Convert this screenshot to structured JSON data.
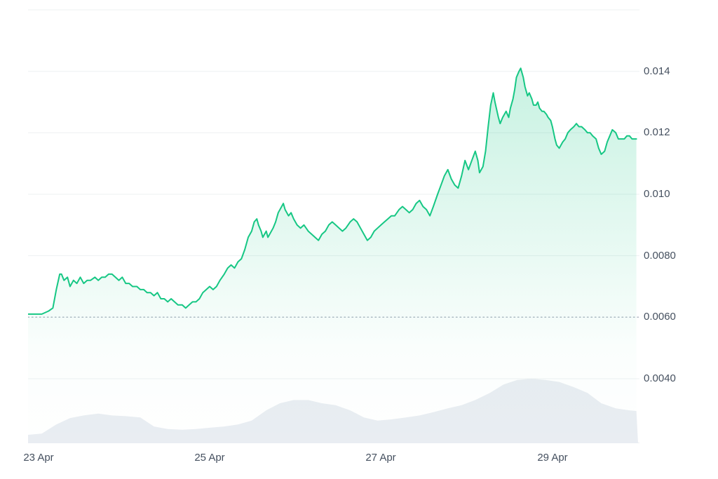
{
  "colors": {
    "line": "#16c784",
    "grid": "#edf0f2",
    "dotted": "#b2b9c5",
    "volume": "#e9edf2",
    "label": "#45505f",
    "background": "#ffffff"
  },
  "chart_data": {
    "type": "line",
    "title": "",
    "xlabel": "",
    "ylabel": "",
    "x_axis": {
      "domain": [
        22.88,
        30.0
      ],
      "ticks": [
        {
          "day": 23,
          "label": "23 Apr"
        },
        {
          "day": 25,
          "label": "25 Apr"
        },
        {
          "day": 27,
          "label": "27 Apr"
        },
        {
          "day": 29,
          "label": "29 Apr"
        }
      ]
    },
    "y_axis": {
      "domain": [
        0.0019,
        0.01632
      ],
      "ticks": [
        {
          "value": 0.014,
          "label": "0.014"
        },
        {
          "value": 0.012,
          "label": "0.012"
        },
        {
          "value": 0.01,
          "label": "0.010"
        },
        {
          "value": 0.008,
          "label": "0.0080"
        },
        {
          "value": 0.006,
          "label": "0.0060"
        },
        {
          "value": 0.004,
          "label": "0.0040"
        }
      ],
      "gridline_values": [
        0.016,
        0.014,
        0.012,
        0.01,
        0.008,
        0.004
      ],
      "dotted_value": 0.006
    },
    "series": [
      {
        "name": "price",
        "type": "line",
        "points": [
          [
            22.88,
            0.0061
          ],
          [
            22.96,
            0.0061
          ],
          [
            23.04,
            0.0061
          ],
          [
            23.12,
            0.0062
          ],
          [
            23.17,
            0.0063
          ],
          [
            23.21,
            0.0069
          ],
          [
            23.25,
            0.0074
          ],
          [
            23.27,
            0.0074
          ],
          [
            23.3,
            0.0072
          ],
          [
            23.34,
            0.0073
          ],
          [
            23.37,
            0.007
          ],
          [
            23.41,
            0.0072
          ],
          [
            23.45,
            0.0071
          ],
          [
            23.49,
            0.0073
          ],
          [
            23.53,
            0.0071
          ],
          [
            23.57,
            0.0072
          ],
          [
            23.61,
            0.0072
          ],
          [
            23.66,
            0.0073
          ],
          [
            23.7,
            0.0072
          ],
          [
            23.74,
            0.0073
          ],
          [
            23.78,
            0.0073
          ],
          [
            23.82,
            0.0074
          ],
          [
            23.86,
            0.0074
          ],
          [
            23.9,
            0.0073
          ],
          [
            23.94,
            0.0072
          ],
          [
            23.98,
            0.0073
          ],
          [
            24.02,
            0.0071
          ],
          [
            24.06,
            0.0071
          ],
          [
            24.1,
            0.007
          ],
          [
            24.15,
            0.007
          ],
          [
            24.19,
            0.0069
          ],
          [
            24.23,
            0.0069
          ],
          [
            24.27,
            0.0068
          ],
          [
            24.31,
            0.0068
          ],
          [
            24.35,
            0.0067
          ],
          [
            24.39,
            0.0068
          ],
          [
            24.43,
            0.0066
          ],
          [
            24.47,
            0.0066
          ],
          [
            24.51,
            0.0065
          ],
          [
            24.55,
            0.0066
          ],
          [
            24.59,
            0.0065
          ],
          [
            24.63,
            0.0064
          ],
          [
            24.68,
            0.0064
          ],
          [
            24.72,
            0.0063
          ],
          [
            24.76,
            0.0064
          ],
          [
            24.8,
            0.0065
          ],
          [
            24.84,
            0.0065
          ],
          [
            24.88,
            0.0066
          ],
          [
            24.92,
            0.0068
          ],
          [
            24.96,
            0.0069
          ],
          [
            25.0,
            0.007
          ],
          [
            25.04,
            0.0069
          ],
          [
            25.08,
            0.007
          ],
          [
            25.12,
            0.0072
          ],
          [
            25.17,
            0.0074
          ],
          [
            25.21,
            0.0076
          ],
          [
            25.25,
            0.0077
          ],
          [
            25.29,
            0.0076
          ],
          [
            25.33,
            0.0078
          ],
          [
            25.37,
            0.0079
          ],
          [
            25.41,
            0.0082
          ],
          [
            25.45,
            0.0086
          ],
          [
            25.49,
            0.0088
          ],
          [
            25.52,
            0.0091
          ],
          [
            25.55,
            0.0092
          ],
          [
            25.57,
            0.009
          ],
          [
            25.6,
            0.0088
          ],
          [
            25.62,
            0.0086
          ],
          [
            25.66,
            0.0088
          ],
          [
            25.68,
            0.0086
          ],
          [
            25.7,
            0.0087
          ],
          [
            25.74,
            0.0089
          ],
          [
            25.77,
            0.0091
          ],
          [
            25.8,
            0.0094
          ],
          [
            25.84,
            0.0096
          ],
          [
            25.86,
            0.0097
          ],
          [
            25.88,
            0.0095
          ],
          [
            25.92,
            0.0093
          ],
          [
            25.95,
            0.0094
          ],
          [
            25.98,
            0.0092
          ],
          [
            26.02,
            0.009
          ],
          [
            26.06,
            0.0089
          ],
          [
            26.1,
            0.009
          ],
          [
            26.15,
            0.0088
          ],
          [
            26.19,
            0.0087
          ],
          [
            26.23,
            0.0086
          ],
          [
            26.27,
            0.0085
          ],
          [
            26.31,
            0.0087
          ],
          [
            26.35,
            0.0088
          ],
          [
            26.39,
            0.009
          ],
          [
            26.43,
            0.0091
          ],
          [
            26.47,
            0.009
          ],
          [
            26.51,
            0.0089
          ],
          [
            26.55,
            0.0088
          ],
          [
            26.59,
            0.0089
          ],
          [
            26.64,
            0.0091
          ],
          [
            26.68,
            0.0092
          ],
          [
            26.72,
            0.0091
          ],
          [
            26.76,
            0.0089
          ],
          [
            26.8,
            0.0087
          ],
          [
            26.84,
            0.0085
          ],
          [
            26.88,
            0.0086
          ],
          [
            26.92,
            0.0088
          ],
          [
            26.96,
            0.0089
          ],
          [
            27.0,
            0.009
          ],
          [
            27.04,
            0.0091
          ],
          [
            27.08,
            0.0092
          ],
          [
            27.12,
            0.0093
          ],
          [
            27.16,
            0.0093
          ],
          [
            27.21,
            0.0095
          ],
          [
            27.25,
            0.0096
          ],
          [
            27.29,
            0.0095
          ],
          [
            27.33,
            0.0094
          ],
          [
            27.37,
            0.0095
          ],
          [
            27.41,
            0.0097
          ],
          [
            27.45,
            0.0098
          ],
          [
            27.49,
            0.0096
          ],
          [
            27.53,
            0.0095
          ],
          [
            27.57,
            0.0093
          ],
          [
            27.61,
            0.0096
          ],
          [
            27.66,
            0.01
          ],
          [
            27.7,
            0.0103
          ],
          [
            27.74,
            0.0106
          ],
          [
            27.78,
            0.0108
          ],
          [
            27.82,
            0.0105
          ],
          [
            27.86,
            0.0103
          ],
          [
            27.9,
            0.0102
          ],
          [
            27.94,
            0.0106
          ],
          [
            27.98,
            0.0111
          ],
          [
            28.02,
            0.0108
          ],
          [
            28.06,
            0.0111
          ],
          [
            28.1,
            0.0114
          ],
          [
            28.13,
            0.0111
          ],
          [
            28.15,
            0.0107
          ],
          [
            28.19,
            0.0109
          ],
          [
            28.22,
            0.0114
          ],
          [
            28.25,
            0.0122
          ],
          [
            28.28,
            0.0129
          ],
          [
            28.31,
            0.0133
          ],
          [
            28.33,
            0.013
          ],
          [
            28.37,
            0.0125
          ],
          [
            28.39,
            0.0123
          ],
          [
            28.42,
            0.0125
          ],
          [
            28.44,
            0.0126
          ],
          [
            28.46,
            0.0127
          ],
          [
            28.49,
            0.0125
          ],
          [
            28.51,
            0.0128
          ],
          [
            28.54,
            0.0131
          ],
          [
            28.56,
            0.0134
          ],
          [
            28.58,
            0.0138
          ],
          [
            28.61,
            0.014
          ],
          [
            28.63,
            0.0141
          ],
          [
            28.66,
            0.0138
          ],
          [
            28.68,
            0.0135
          ],
          [
            28.71,
            0.0132
          ],
          [
            28.73,
            0.0133
          ],
          [
            28.76,
            0.0131
          ],
          [
            28.78,
            0.0129
          ],
          [
            28.81,
            0.0129
          ],
          [
            28.83,
            0.013
          ],
          [
            28.85,
            0.0128
          ],
          [
            28.88,
            0.0127
          ],
          [
            28.9,
            0.0127
          ],
          [
            28.93,
            0.0126
          ],
          [
            28.95,
            0.0125
          ],
          [
            28.98,
            0.0124
          ],
          [
            29.0,
            0.0122
          ],
          [
            29.03,
            0.0118
          ],
          [
            29.05,
            0.0116
          ],
          [
            29.08,
            0.0115
          ],
          [
            29.12,
            0.0117
          ],
          [
            29.15,
            0.0118
          ],
          [
            29.18,
            0.012
          ],
          [
            29.21,
            0.0121
          ],
          [
            29.25,
            0.0122
          ],
          [
            29.28,
            0.0123
          ],
          [
            29.31,
            0.0122
          ],
          [
            29.34,
            0.0122
          ],
          [
            29.38,
            0.0121
          ],
          [
            29.41,
            0.012
          ],
          [
            29.44,
            0.012
          ],
          [
            29.47,
            0.0119
          ],
          [
            29.51,
            0.0118
          ],
          [
            29.54,
            0.0115
          ],
          [
            29.57,
            0.0113
          ],
          [
            29.61,
            0.0114
          ],
          [
            29.64,
            0.0117
          ],
          [
            29.67,
            0.0119
          ],
          [
            29.7,
            0.0121
          ],
          [
            29.74,
            0.012
          ],
          [
            29.77,
            0.0118
          ],
          [
            29.8,
            0.0118
          ],
          [
            29.84,
            0.0118
          ],
          [
            29.87,
            0.0119
          ],
          [
            29.9,
            0.0119
          ],
          [
            29.93,
            0.0118
          ],
          [
            29.97,
            0.0118
          ],
          [
            29.98,
            0.0118
          ]
        ]
      },
      {
        "name": "volume",
        "type": "area",
        "scale": "relative-0-to-1",
        "points": [
          [
            22.88,
            0.13
          ],
          [
            23.04,
            0.15
          ],
          [
            23.21,
            0.29
          ],
          [
            23.37,
            0.39
          ],
          [
            23.53,
            0.43
          ],
          [
            23.7,
            0.46
          ],
          [
            23.86,
            0.43
          ],
          [
            24.02,
            0.42
          ],
          [
            24.19,
            0.4
          ],
          [
            24.35,
            0.26
          ],
          [
            24.51,
            0.22
          ],
          [
            24.68,
            0.21
          ],
          [
            24.84,
            0.22
          ],
          [
            25.0,
            0.24
          ],
          [
            25.17,
            0.26
          ],
          [
            25.33,
            0.29
          ],
          [
            25.49,
            0.35
          ],
          [
            25.66,
            0.51
          ],
          [
            25.82,
            0.62
          ],
          [
            25.98,
            0.67
          ],
          [
            26.15,
            0.67
          ],
          [
            26.31,
            0.62
          ],
          [
            26.47,
            0.59
          ],
          [
            26.64,
            0.51
          ],
          [
            26.8,
            0.4
          ],
          [
            26.96,
            0.35
          ],
          [
            27.12,
            0.37
          ],
          [
            27.29,
            0.4
          ],
          [
            27.45,
            0.43
          ],
          [
            27.61,
            0.48
          ],
          [
            27.78,
            0.54
          ],
          [
            27.94,
            0.59
          ],
          [
            28.1,
            0.67
          ],
          [
            28.27,
            0.78
          ],
          [
            28.43,
            0.91
          ],
          [
            28.59,
            0.98
          ],
          [
            28.76,
            1.0
          ],
          [
            28.92,
            0.98
          ],
          [
            29.08,
            0.95
          ],
          [
            29.25,
            0.87
          ],
          [
            29.41,
            0.78
          ],
          [
            29.57,
            0.62
          ],
          [
            29.74,
            0.54
          ],
          [
            29.9,
            0.51
          ],
          [
            29.98,
            0.5
          ]
        ]
      }
    ]
  }
}
